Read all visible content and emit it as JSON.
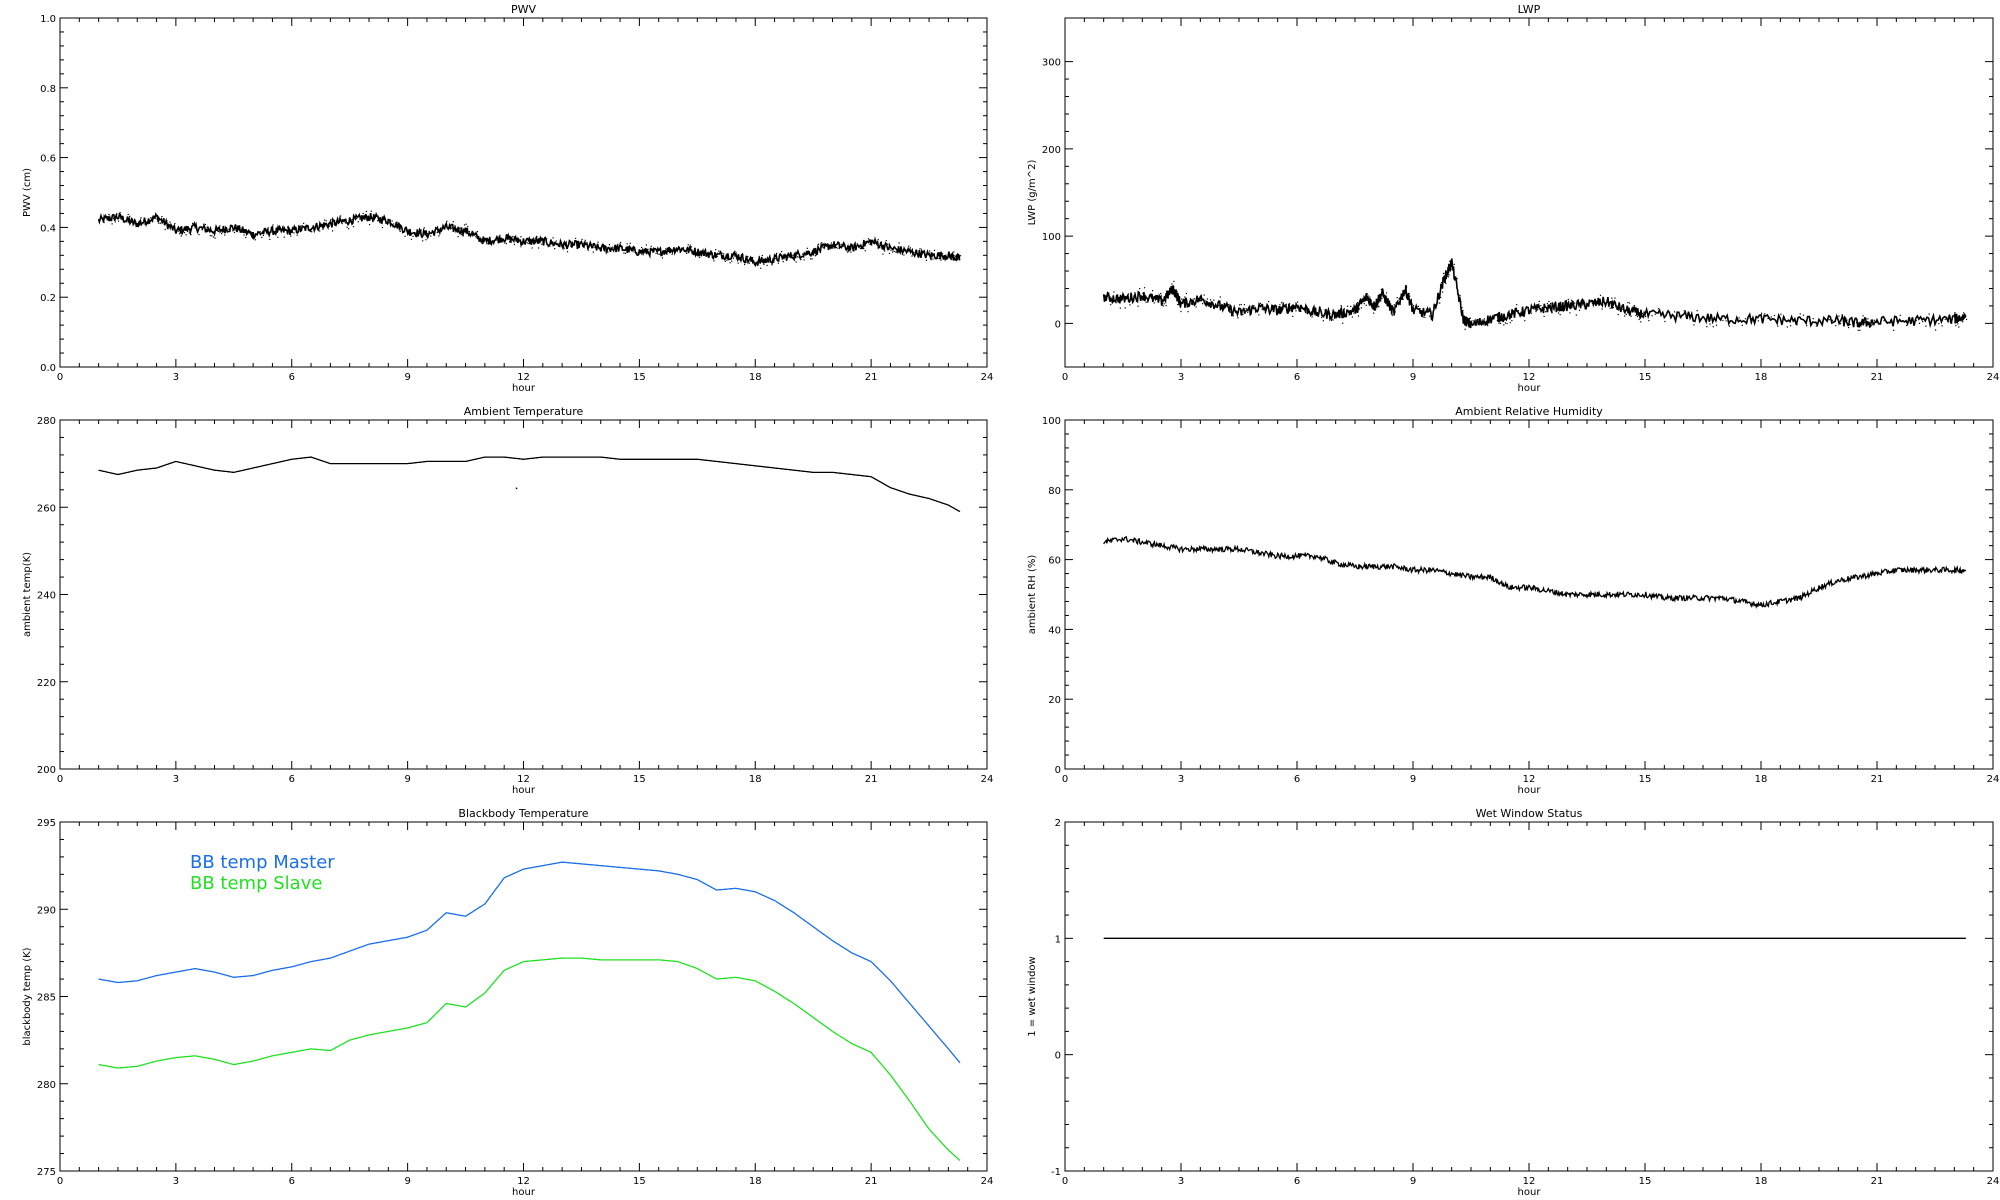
{
  "chart_data": [
    {
      "type": "line",
      "title": "PWV",
      "xlabel": "hour",
      "ylabel": "PWV (cm)",
      "xlim": [
        0,
        24
      ],
      "ylim": [
        0,
        1.0
      ],
      "xticks": [
        "0",
        "3",
        "6",
        "9",
        "12",
        "15",
        "18",
        "21",
        "24"
      ],
      "yticks": [
        "0.0",
        "0.2",
        "0.4",
        "0.6",
        "0.8",
        "1.0"
      ],
      "style": "noisy-points",
      "series": [
        {
          "color": "#000000",
          "x": [
            1.0,
            1.5,
            2.0,
            2.5,
            3.0,
            3.5,
            4.0,
            4.5,
            5.0,
            5.5,
            6.0,
            6.5,
            7.0,
            7.5,
            8.0,
            8.5,
            9.0,
            9.5,
            10.0,
            10.5,
            11.0,
            11.5,
            12.0,
            12.5,
            13.0,
            13.5,
            14.0,
            14.5,
            15.0,
            15.5,
            16.0,
            16.5,
            17.0,
            17.5,
            18.0,
            18.5,
            19.0,
            19.5,
            20.0,
            20.5,
            21.0,
            21.5,
            22.0,
            22.5,
            23.0,
            23.3
          ],
          "y": [
            0.42,
            0.43,
            0.41,
            0.43,
            0.39,
            0.4,
            0.39,
            0.4,
            0.38,
            0.39,
            0.39,
            0.4,
            0.41,
            0.42,
            0.43,
            0.42,
            0.39,
            0.38,
            0.4,
            0.39,
            0.36,
            0.37,
            0.36,
            0.36,
            0.35,
            0.35,
            0.34,
            0.34,
            0.33,
            0.33,
            0.34,
            0.33,
            0.32,
            0.32,
            0.3,
            0.31,
            0.32,
            0.33,
            0.35,
            0.34,
            0.36,
            0.34,
            0.33,
            0.32,
            0.32,
            0.31
          ],
          "jitter": 0.012
        }
      ]
    },
    {
      "type": "line",
      "title": "LWP",
      "xlabel": "hour",
      "ylabel": "LWP (g/m^2)",
      "xlim": [
        0,
        24
      ],
      "ylim": [
        -50,
        350
      ],
      "xticks": [
        "0",
        "3",
        "6",
        "9",
        "12",
        "15",
        "18",
        "21",
        "24"
      ],
      "yticks": [
        "0",
        "100",
        "200",
        "300"
      ],
      "style": "noisy-points",
      "series": [
        {
          "color": "#000000",
          "x": [
            1.0,
            1.5,
            2.0,
            2.5,
            2.8,
            3.0,
            3.5,
            4.0,
            4.5,
            5.0,
            5.5,
            6.0,
            6.5,
            7.0,
            7.5,
            7.8,
            8.0,
            8.2,
            8.5,
            8.8,
            9.0,
            9.5,
            9.8,
            10.0,
            10.3,
            10.5,
            11.0,
            11.5,
            12.0,
            12.5,
            13.0,
            13.5,
            14.0,
            14.5,
            15.0,
            16.0,
            17.0,
            18.0,
            19.0,
            20.0,
            20.5,
            21.0,
            22.0,
            23.0,
            23.3
          ],
          "y": [
            30,
            28,
            32,
            25,
            40,
            22,
            28,
            20,
            12,
            18,
            15,
            20,
            12,
            10,
            15,
            30,
            20,
            35,
            12,
            40,
            15,
            10,
            50,
            70,
            5,
            -2,
            5,
            10,
            15,
            18,
            20,
            22,
            25,
            15,
            10,
            8,
            5,
            5,
            3,
            3,
            0,
            2,
            3,
            5,
            8
          ],
          "jitter": 6
        }
      ]
    },
    {
      "type": "line",
      "title": "Ambient Temperature",
      "xlabel": "hour",
      "ylabel": "ambient temp(K)",
      "xlim": [
        0,
        24
      ],
      "ylim": [
        200,
        280
      ],
      "xticks": [
        "0",
        "3",
        "6",
        "9",
        "12",
        "15",
        "18",
        "21",
        "24"
      ],
      "yticks": [
        "200",
        "220",
        "240",
        "260",
        "280"
      ],
      "style": "line",
      "series": [
        {
          "color": "#000000",
          "x": [
            1.0,
            1.5,
            2.0,
            2.5,
            3.0,
            3.5,
            4.0,
            4.5,
            5.0,
            5.5,
            6.0,
            6.5,
            7.0,
            7.5,
            8.0,
            8.5,
            9.0,
            9.5,
            10.0,
            10.5,
            11.0,
            11.5,
            12.0,
            12.5,
            13.0,
            13.5,
            14.0,
            14.5,
            15.0,
            15.5,
            16.0,
            16.5,
            17.0,
            17.5,
            18.0,
            18.5,
            19.0,
            19.5,
            20.0,
            20.5,
            21.0,
            21.5,
            22.0,
            22.5,
            23.0,
            23.3
          ],
          "y": [
            268.5,
            267.5,
            268.5,
            269.0,
            270.5,
            269.5,
            268.5,
            268.0,
            269.0,
            270.0,
            271.0,
            271.5,
            270.0,
            270.0,
            270.0,
            270.0,
            270.0,
            270.5,
            270.5,
            270.5,
            271.5,
            271.5,
            271.0,
            271.5,
            271.5,
            271.5,
            271.5,
            271.0,
            271.0,
            271.0,
            271.0,
            271.0,
            270.5,
            270.0,
            269.5,
            269.0,
            268.5,
            268.0,
            268.0,
            267.5,
            267.0,
            264.5,
            263.0,
            262.0,
            260.5,
            259.0
          ],
          "outliers": [
            [
              11.8,
              264.5
            ]
          ],
          "jitter": 0
        }
      ]
    },
    {
      "type": "line",
      "title": "Ambient Relative Humidity",
      "xlabel": "hour",
      "ylabel": "ambient RH (%)",
      "xlim": [
        0,
        24
      ],
      "ylim": [
        0,
        100
      ],
      "xticks": [
        "0",
        "3",
        "6",
        "9",
        "12",
        "15",
        "18",
        "21",
        "24"
      ],
      "yticks": [
        "0",
        "20",
        "40",
        "60",
        "80",
        "100"
      ],
      "style": "line",
      "series": [
        {
          "color": "#000000",
          "x": [
            1.0,
            1.5,
            2.0,
            2.5,
            3.0,
            3.5,
            4.0,
            4.5,
            5.0,
            5.5,
            6.0,
            6.5,
            7.0,
            7.5,
            8.0,
            8.5,
            9.0,
            9.5,
            10.0,
            10.5,
            11.0,
            11.5,
            12.0,
            12.5,
            13.0,
            13.5,
            14.0,
            14.5,
            15.0,
            15.5,
            16.0,
            16.5,
            17.0,
            17.5,
            18.0,
            18.5,
            19.0,
            19.5,
            20.0,
            20.5,
            21.0,
            21.5,
            22.0,
            22.5,
            23.0,
            23.3
          ],
          "y": [
            65,
            66,
            65,
            64,
            63,
            63,
            63,
            63,
            62,
            61,
            61,
            61,
            59,
            58,
            58,
            58,
            57,
            57,
            56,
            55,
            55,
            52,
            52,
            51,
            50,
            50,
            50,
            50,
            50,
            49,
            49,
            49,
            49,
            48,
            47,
            48,
            49,
            52,
            54,
            55,
            56,
            57,
            57,
            57,
            57,
            57
          ],
          "jitter": 0.8
        }
      ]
    },
    {
      "type": "line",
      "title": "Blackbody Temperature",
      "xlabel": "hour",
      "ylabel": "blackbody temp (K)",
      "xlim": [
        0,
        24
      ],
      "ylim": [
        275,
        295
      ],
      "xticks": [
        "0",
        "3",
        "6",
        "9",
        "12",
        "15",
        "18",
        "21",
        "24"
      ],
      "yticks": [
        "275",
        "280",
        "285",
        "290",
        "295"
      ],
      "style": "line",
      "legend": [
        "BB temp Master",
        "BB temp Slave"
      ],
      "series": [
        {
          "name": "BB temp Master",
          "color": "#1a6fe8",
          "x": [
            1.0,
            1.5,
            2.0,
            2.5,
            3.0,
            3.5,
            4.0,
            4.5,
            5.0,
            5.5,
            6.0,
            6.5,
            7.0,
            7.5,
            8.0,
            8.5,
            9.0,
            9.5,
            10.0,
            10.5,
            11.0,
            11.5,
            12.0,
            12.5,
            13.0,
            13.5,
            14.0,
            14.5,
            15.0,
            15.5,
            16.0,
            16.5,
            17.0,
            17.5,
            18.0,
            18.5,
            19.0,
            19.5,
            20.0,
            20.5,
            21.0,
            21.5,
            22.0,
            22.5,
            23.0,
            23.3
          ],
          "y": [
            286.0,
            285.8,
            285.9,
            286.2,
            286.4,
            286.6,
            286.4,
            286.1,
            286.2,
            286.5,
            286.7,
            287.0,
            287.2,
            287.6,
            288.0,
            288.2,
            288.4,
            288.8,
            289.8,
            289.6,
            290.3,
            291.8,
            292.3,
            292.5,
            292.7,
            292.6,
            292.5,
            292.4,
            292.3,
            292.2,
            292.0,
            291.7,
            291.1,
            291.2,
            291.0,
            290.5,
            289.8,
            289.0,
            288.2,
            287.5,
            287.0,
            285.9,
            284.6,
            283.3,
            282.0,
            281.2
          ],
          "jitter": 0
        },
        {
          "name": "BB temp Slave",
          "color": "#22e022",
          "x": [
            1.0,
            1.5,
            2.0,
            2.5,
            3.0,
            3.5,
            4.0,
            4.5,
            5.0,
            5.5,
            6.0,
            6.5,
            7.0,
            7.5,
            8.0,
            8.5,
            9.0,
            9.5,
            10.0,
            10.5,
            11.0,
            11.5,
            12.0,
            12.5,
            13.0,
            13.5,
            14.0,
            14.5,
            15.0,
            15.5,
            16.0,
            16.5,
            17.0,
            17.5,
            18.0,
            18.5,
            19.0,
            19.5,
            20.0,
            20.5,
            21.0,
            21.5,
            22.0,
            22.5,
            23.0,
            23.3
          ],
          "y": [
            281.1,
            280.9,
            281.0,
            281.3,
            281.5,
            281.6,
            281.4,
            281.1,
            281.3,
            281.6,
            281.8,
            282.0,
            281.9,
            282.5,
            282.8,
            283.0,
            283.2,
            283.5,
            284.6,
            284.4,
            285.2,
            286.5,
            287.0,
            287.1,
            287.2,
            287.2,
            287.1,
            287.1,
            287.1,
            287.1,
            287.0,
            286.6,
            286.0,
            286.1,
            285.9,
            285.3,
            284.6,
            283.8,
            283.0,
            282.3,
            281.8,
            280.5,
            279.0,
            277.4,
            276.2,
            275.6
          ],
          "jitter": 0
        }
      ]
    },
    {
      "type": "line",
      "title": "Wet Window Status",
      "xlabel": "hour",
      "ylabel": "1 = wet window",
      "xlim": [
        0,
        24
      ],
      "ylim": [
        -1,
        2
      ],
      "xticks": [
        "0",
        "3",
        "6",
        "9",
        "12",
        "15",
        "18",
        "21",
        "24"
      ],
      "yticks": [
        "-1",
        "0",
        "1",
        "2"
      ],
      "style": "line",
      "series": [
        {
          "color": "#000000",
          "x": [
            1.0,
            23.3
          ],
          "y": [
            1,
            1
          ],
          "jitter": 0
        }
      ]
    }
  ]
}
